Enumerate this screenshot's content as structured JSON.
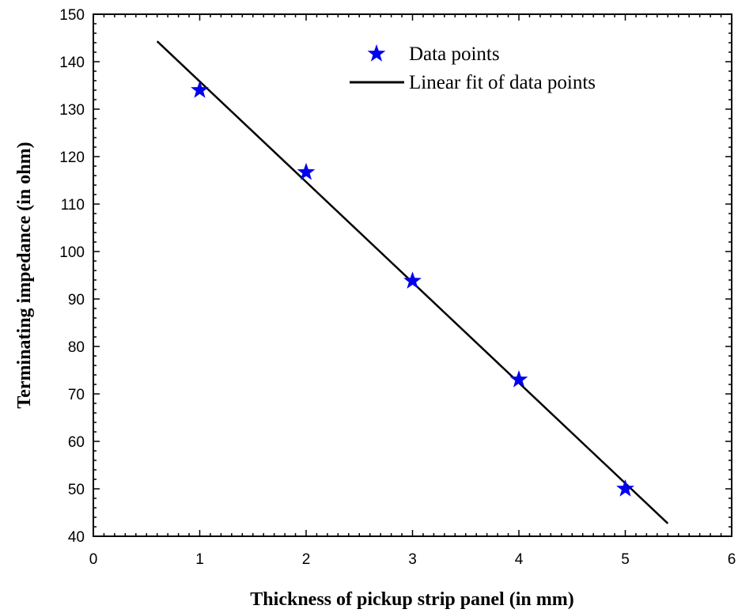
{
  "chart_data": {
    "type": "scatter",
    "title": "",
    "xlabel": "Thickness of pickup strip panel (in mm)",
    "ylabel": "Terminating impedance (in ohm)",
    "xlim": [
      0,
      6
    ],
    "ylim": [
      40,
      150
    ],
    "xticks": [
      "0",
      "1",
      "2",
      "3",
      "4",
      "5",
      "6"
    ],
    "yticks": [
      "40",
      "50",
      "60",
      "70",
      "80",
      "90",
      "100",
      "110",
      "120",
      "130",
      "140",
      "150"
    ],
    "grid": false,
    "legend_position": "top-right",
    "series": [
      {
        "name": "Data points",
        "kind": "scatter",
        "marker": "star",
        "color": "#0000ee",
        "x": [
          1,
          2,
          3,
          4,
          5
        ],
        "y": [
          134,
          116.7,
          93.8,
          73,
          50
        ]
      },
      {
        "name": "Linear fit of data points",
        "kind": "line",
        "color": "#000000",
        "x": [
          0.6,
          5.4
        ],
        "y": [
          144.3,
          42.7
        ]
      }
    ]
  }
}
